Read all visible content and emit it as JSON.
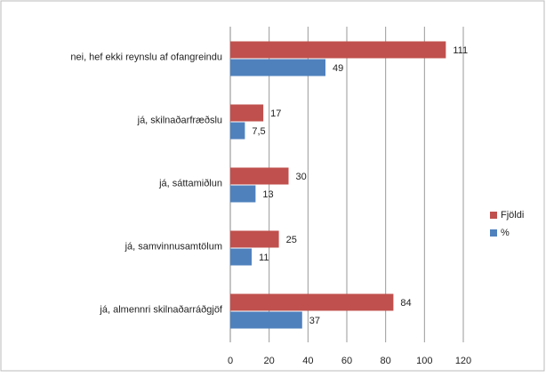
{
  "chart_data": {
    "type": "bar",
    "orientation": "horizontal",
    "categories": [
      "nei, hef ekki reynslu af ofangreindu",
      "já, skilnaðarfræðslu",
      "já, sáttamiðlun",
      "já, samvinnusamtölum",
      "já, almennri skilnaðarráðgjöf"
    ],
    "series": [
      {
        "name": "Fjöldi",
        "color": "#c0504d",
        "values": [
          111,
          17,
          30,
          25,
          84
        ]
      },
      {
        "name": "%",
        "color": "#4f81bd",
        "values": [
          49,
          7.5,
          13,
          11,
          37
        ],
        "value_labels": [
          "49",
          "7,5",
          "13",
          "11",
          "37"
        ]
      }
    ],
    "xlim": [
      0,
      120
    ],
    "xticks": [
      0,
      20,
      40,
      60,
      80,
      100,
      120
    ],
    "grid": true,
    "legend": "right"
  }
}
